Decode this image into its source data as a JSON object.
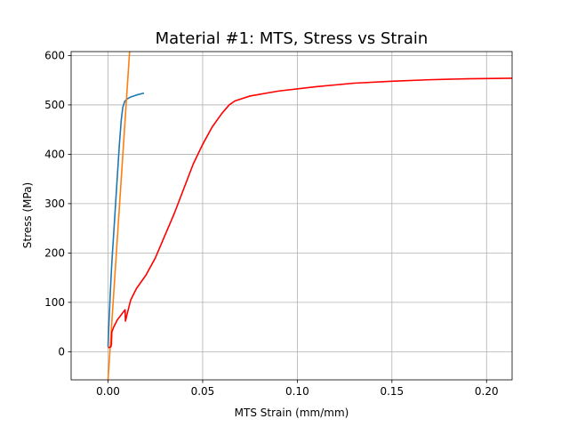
{
  "chart_data": {
    "type": "line",
    "title": "Material #1: MTS, Stress vs Strain",
    "xlabel": "MTS Strain (mm/mm)",
    "ylabel": "Stress (MPa)",
    "xlim": [
      -0.0195,
      0.2135
    ],
    "ylim": [
      -57,
      608
    ],
    "grid": true,
    "x_ticks": [
      0.0,
      0.05,
      0.1,
      0.15,
      0.2
    ],
    "x_tick_labels": [
      "0.00",
      "0.05",
      "0.10",
      "0.15",
      "0.20"
    ],
    "y_ticks": [
      0,
      100,
      200,
      300,
      400,
      500,
      600
    ],
    "y_tick_labels": [
      "0",
      "100",
      "200",
      "300",
      "400",
      "500",
      "600"
    ],
    "series": [
      {
        "color": "#1f77b4",
        "points": [
          [
            0.0,
            10
          ],
          [
            0.0005,
            60
          ],
          [
            0.0012,
            120
          ],
          [
            0.002,
            180
          ],
          [
            0.003,
            240
          ],
          [
            0.004,
            300
          ],
          [
            0.005,
            360
          ],
          [
            0.006,
            420
          ],
          [
            0.007,
            470
          ],
          [
            0.0078,
            495
          ],
          [
            0.0088,
            507
          ],
          [
            0.01,
            512
          ],
          [
            0.012,
            516
          ],
          [
            0.015,
            520
          ],
          [
            0.019,
            524
          ]
        ]
      },
      {
        "color": "#ff7f0e",
        "points": [
          [
            0.0,
            -57
          ],
          [
            0.0114,
            608
          ]
        ]
      },
      {
        "color": "#ff0000",
        "points": [
          [
            0.0,
            8
          ],
          [
            0.0015,
            10
          ],
          [
            0.0018,
            15
          ],
          [
            0.002,
            40
          ],
          [
            0.003,
            50
          ],
          [
            0.005,
            65
          ],
          [
            0.008,
            80
          ],
          [
            0.009,
            85
          ],
          [
            0.0092,
            62
          ],
          [
            0.01,
            75
          ],
          [
            0.012,
            105
          ],
          [
            0.015,
            128
          ],
          [
            0.02,
            155
          ],
          [
            0.025,
            190
          ],
          [
            0.03,
            235
          ],
          [
            0.035,
            280
          ],
          [
            0.04,
            330
          ],
          [
            0.045,
            380
          ],
          [
            0.05,
            420
          ],
          [
            0.055,
            455
          ],
          [
            0.06,
            482
          ],
          [
            0.064,
            500
          ],
          [
            0.067,
            508
          ],
          [
            0.075,
            518
          ],
          [
            0.09,
            528
          ],
          [
            0.11,
            537
          ],
          [
            0.13,
            544
          ],
          [
            0.15,
            548
          ],
          [
            0.17,
            551
          ],
          [
            0.19,
            553
          ],
          [
            0.2135,
            554
          ]
        ]
      }
    ]
  }
}
